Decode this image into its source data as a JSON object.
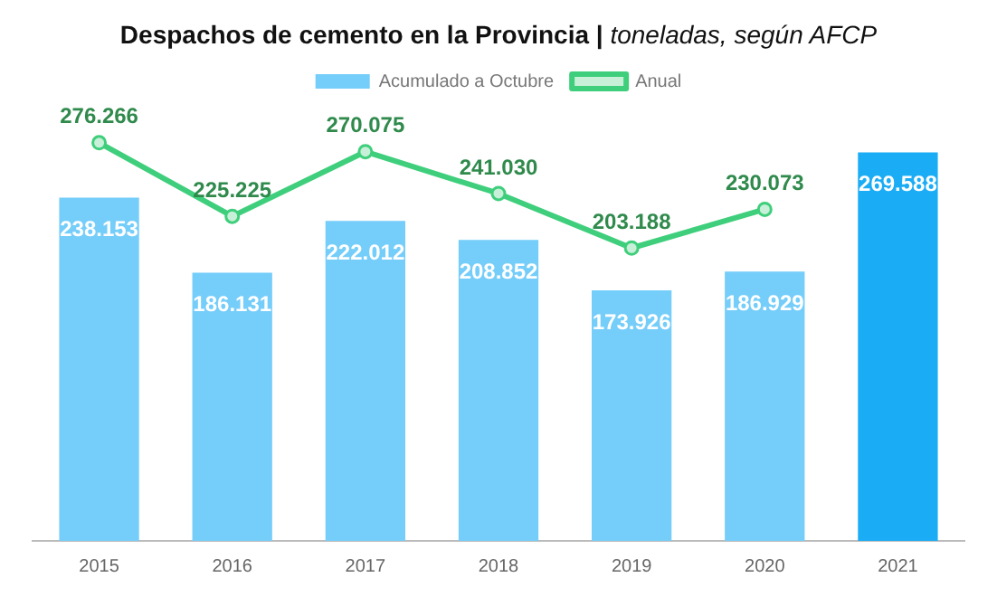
{
  "chart_data": {
    "type": "bar",
    "title": "Despachos de cemento en la Provincia |",
    "subtitle": "toneladas, según AFCP",
    "categories": [
      "2015",
      "2016",
      "2017",
      "2018",
      "2019",
      "2020",
      "2021"
    ],
    "series": [
      {
        "name": "Acumulado a Octubre",
        "colors": [
          "#75cdfa",
          "#75cdfa",
          "#75cdfa",
          "#75cdfa",
          "#75cdfa",
          "#75cdfa",
          "#1aacf5"
        ],
        "values": [
          238153,
          186131,
          222012,
          208852,
          173926,
          186929,
          269588
        ],
        "value_labels": [
          "238.153",
          "186.131",
          "222.012",
          "208.852",
          "173.926",
          "186.929",
          "269.588"
        ]
      },
      {
        "name": "Anual",
        "type": "line",
        "color": "#3fcf7c",
        "marker": "circle",
        "values": [
          276266,
          225225,
          270075,
          241030,
          203188,
          230073,
          null
        ],
        "value_labels": [
          "276.266",
          "225.225",
          "270.075",
          "241.030",
          "203.188",
          "230.073",
          null
        ]
      }
    ],
    "legend": "top",
    "grid": false
  }
}
